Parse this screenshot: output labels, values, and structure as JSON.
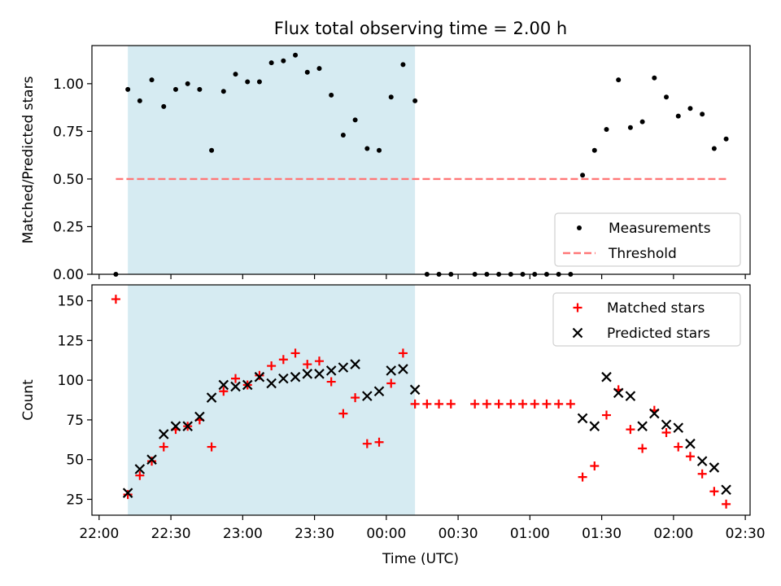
{
  "title": "Flux total observing time = 2.00 h",
  "chart_data": [
    {
      "type": "scatter",
      "ylabel": "Matched/Predicted stars",
      "xlabel": "",
      "ylim": [
        0,
        1.2
      ],
      "xlim": [
        "21:57",
        "02:32"
      ],
      "x_tick_labels": [
        "22:00",
        "22:30",
        "23:00",
        "23:30",
        "00:00",
        "00:30",
        "01:00",
        "01:30",
        "02:00",
        "02:30"
      ],
      "y_ticks": [
        0.0,
        0.25,
        0.5,
        0.75,
        1.0
      ],
      "y_tick_labels": [
        "0.00",
        "0.25",
        "0.50",
        "0.75",
        "1.00"
      ],
      "grid": false,
      "legend_position": "lower right",
      "highlight_span": [
        "22:12",
        "00:12"
      ],
      "series": [
        {
          "name": "Measurements",
          "marker": "dot",
          "color": "#000000",
          "x": [
            "22:07",
            "22:12",
            "22:17",
            "22:22",
            "22:27",
            "22:32",
            "22:37",
            "22:42",
            "22:47",
            "22:52",
            "22:57",
            "23:02",
            "23:07",
            "23:12",
            "23:17",
            "23:22",
            "23:27",
            "23:32",
            "23:37",
            "23:42",
            "23:47",
            "23:52",
            "23:57",
            "00:02",
            "00:07",
            "00:12",
            "00:17",
            "00:22",
            "00:27",
            "00:37",
            "00:42",
            "00:47",
            "00:52",
            "00:57",
            "01:02",
            "01:07",
            "01:12",
            "01:17",
            "01:22",
            "01:27",
            "01:32",
            "01:37",
            "01:42",
            "01:47",
            "01:52",
            "01:57",
            "02:02",
            "02:07",
            "02:12",
            "02:17",
            "02:22"
          ],
          "y": [
            0.0,
            0.97,
            0.91,
            1.02,
            0.88,
            0.97,
            1.0,
            0.97,
            0.65,
            0.96,
            1.05,
            1.01,
            1.01,
            1.11,
            1.12,
            1.15,
            1.06,
            1.08,
            0.94,
            0.73,
            0.81,
            0.66,
            0.65,
            0.93,
            1.1,
            0.91,
            0.0,
            0.0,
            0.0,
            0.0,
            0.0,
            0.0,
            0.0,
            0.0,
            0.0,
            0.0,
            0.0,
            0.0,
            0.52,
            0.65,
            0.76,
            1.02,
            0.77,
            0.8,
            1.03,
            0.93,
            0.83,
            0.87,
            0.84,
            0.66,
            0.71
          ]
        },
        {
          "name": "Threshold",
          "marker": "dashed-line",
          "color": "#ff7777",
          "x": [
            "22:07",
            "02:22"
          ],
          "y": [
            0.5,
            0.5
          ]
        }
      ]
    },
    {
      "type": "scatter",
      "ylabel": "Count",
      "xlabel": "Time (UTC)",
      "ylim": [
        15,
        160
      ],
      "xlim": [
        "21:57",
        "02:32"
      ],
      "x_tick_labels": [
        "22:00",
        "22:30",
        "23:00",
        "23:30",
        "00:00",
        "00:30",
        "01:00",
        "01:30",
        "02:00",
        "02:30"
      ],
      "y_ticks": [
        25,
        50,
        75,
        100,
        125,
        150
      ],
      "y_tick_labels": [
        "25",
        "50",
        "75",
        "100",
        "125",
        "150"
      ],
      "grid": false,
      "legend_position": "upper right",
      "highlight_span": [
        "22:12",
        "00:12"
      ],
      "series": [
        {
          "name": "Matched stars",
          "marker": "plus",
          "color": "#ff0000",
          "x": [
            "22:07",
            "22:12",
            "22:17",
            "22:22",
            "22:27",
            "22:32",
            "22:37",
            "22:42",
            "22:47",
            "22:52",
            "22:57",
            "23:02",
            "23:07",
            "23:12",
            "23:17",
            "23:22",
            "23:27",
            "23:32",
            "23:37",
            "23:42",
            "23:47",
            "23:52",
            "23:57",
            "00:02",
            "00:07",
            "00:12",
            "00:17",
            "00:22",
            "00:27",
            "00:37",
            "00:42",
            "00:47",
            "00:52",
            "00:57",
            "01:02",
            "01:07",
            "01:12",
            "01:17",
            "01:22",
            "01:27",
            "01:32",
            "01:37",
            "01:42",
            "01:47",
            "01:52",
            "01:57",
            "02:02",
            "02:07",
            "02:12",
            "02:17",
            "02:22"
          ],
          "y": [
            151,
            28,
            40,
            49,
            58,
            69,
            71,
            75,
            58,
            93,
            101,
            97,
            103,
            109,
            113,
            117,
            110,
            112,
            99,
            79,
            89,
            60,
            61,
            98,
            117,
            85,
            85,
            85,
            85,
            85,
            85,
            85,
            85,
            85,
            85,
            85,
            85,
            85,
            39,
            46,
            78,
            94,
            69,
            57,
            81,
            67,
            58,
            52,
            41,
            30,
            22
          ]
        },
        {
          "name": "Predicted stars",
          "marker": "x",
          "color": "#000000",
          "x": [
            "22:12",
            "22:17",
            "22:22",
            "22:27",
            "22:32",
            "22:37",
            "22:42",
            "22:47",
            "22:52",
            "22:57",
            "23:02",
            "23:07",
            "23:12",
            "23:17",
            "23:22",
            "23:27",
            "23:32",
            "23:37",
            "23:42",
            "23:47",
            "23:52",
            "23:57",
            "00:02",
            "00:07",
            "00:12",
            "01:22",
            "01:27",
            "01:32",
            "01:37",
            "01:42",
            "01:47",
            "01:52",
            "01:57",
            "02:02",
            "02:07",
            "02:12",
            "02:17",
            "02:22"
          ],
          "y": [
            29,
            44,
            50,
            66,
            71,
            71,
            77,
            89,
            97,
            96,
            97,
            102,
            98,
            101,
            102,
            104,
            104,
            106,
            108,
            110,
            90,
            93,
            106,
            107,
            94,
            76,
            71,
            102,
            92,
            90,
            71,
            79,
            72,
            70,
            60,
            49,
            45,
            31
          ]
        }
      ]
    }
  ]
}
